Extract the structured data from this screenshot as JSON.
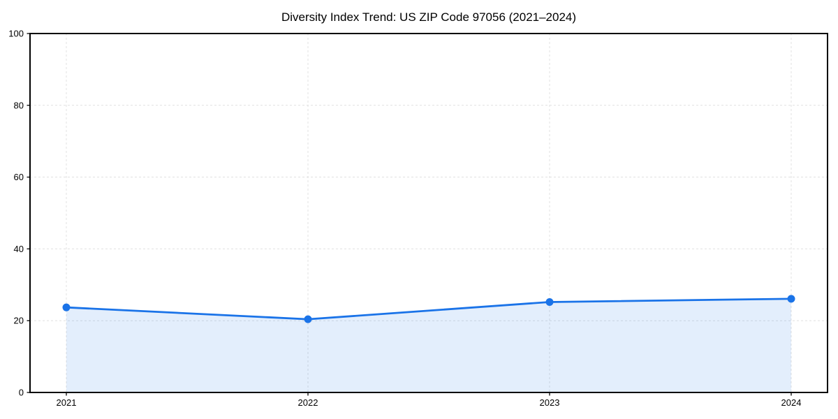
{
  "chart": {
    "title": "Diversity Index Trend: US ZIP Code 97056 (2021–2024)"
  },
  "chart_data": {
    "type": "line",
    "title": "Diversity Index Trend: US ZIP Code 97056 (2021–2024)",
    "categories": [
      "2021",
      "2022",
      "2023",
      "2024"
    ],
    "series": [
      {
        "name": "Diversity Index",
        "values": [
          23.7,
          20.4,
          25.2,
          26.1
        ]
      }
    ],
    "xlabel": "",
    "ylabel": "",
    "ylim": [
      0,
      100
    ],
    "yticks": [
      0,
      20,
      40,
      60,
      80,
      100
    ],
    "grid": true,
    "grid_style": "dashed",
    "legend": "none",
    "area_fill": true,
    "markers": "circle",
    "colors": {
      "line": "#1a73e8",
      "marker": "#1a73e8",
      "area": "#1a73e8",
      "area_opacity": "0.12",
      "grid": "#e0e0e0",
      "spine": "#000000",
      "text": "#000000"
    }
  }
}
